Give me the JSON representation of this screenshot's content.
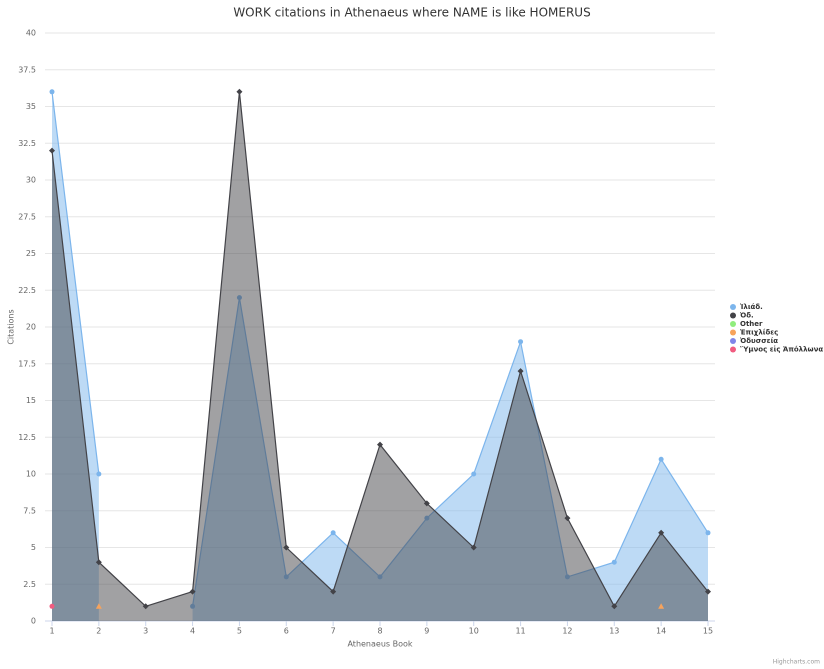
{
  "chart_data": {
    "type": "area",
    "title": "WORK citations in Athenaeus where NAME is like HOMERUS",
    "x_label": "Athenaeus Book",
    "y_label": "Citations",
    "credit": "Highcharts.com",
    "x": [
      1,
      2,
      3,
      4,
      5,
      6,
      7,
      8,
      9,
      10,
      11,
      12,
      13,
      14,
      15
    ],
    "xlim": [
      1,
      15
    ],
    "xticks": [
      1,
      2,
      3,
      4,
      5,
      6,
      7,
      8,
      9,
      10,
      11,
      12,
      13,
      14,
      15
    ],
    "ylim": [
      0,
      40
    ],
    "yticks": [
      0,
      2.5,
      5,
      7.5,
      10,
      12.5,
      15,
      17.5,
      20,
      22.5,
      25,
      27.5,
      30,
      32.5,
      35,
      37.5,
      40
    ],
    "grid": true,
    "legend": "right",
    "series": [
      {
        "name": "Ἰλιάδ.",
        "color": "#7cb5ec",
        "marker": "circle",
        "values": [
          36,
          10,
          null,
          1,
          22,
          3,
          6,
          3,
          7,
          10,
          19,
          3,
          4,
          11,
          6
        ]
      },
      {
        "name": "Ὀδ.",
        "color": "#434348",
        "marker": "diamond",
        "values": [
          32,
          4,
          1,
          2,
          36,
          5,
          2,
          12,
          8,
          5,
          17,
          7,
          1,
          6,
          2
        ]
      },
      {
        "name": "Other",
        "color": "#90ed7d",
        "marker": "square",
        "values": [
          null,
          null,
          null,
          null,
          null,
          null,
          null,
          null,
          null,
          null,
          null,
          null,
          null,
          null,
          null
        ]
      },
      {
        "name": "Ἐπιχλίδες",
        "color": "#f7a35c",
        "marker": "triangle",
        "values": [
          null,
          1,
          null,
          null,
          null,
          null,
          null,
          null,
          null,
          null,
          null,
          null,
          null,
          1,
          null
        ]
      },
      {
        "name": "Ὀδυσσεία",
        "color": "#8085e9",
        "marker": "circle",
        "values": [
          null,
          null,
          null,
          null,
          null,
          null,
          null,
          null,
          null,
          null,
          null,
          null,
          null,
          null,
          null
        ]
      },
      {
        "name": "Ὕμνος εἰς Ἀπόλλωνα",
        "color": "#f15c80",
        "marker": "circle",
        "values": [
          1,
          null,
          null,
          null,
          null,
          null,
          null,
          null,
          null,
          null,
          null,
          null,
          null,
          null,
          null
        ]
      }
    ]
  }
}
